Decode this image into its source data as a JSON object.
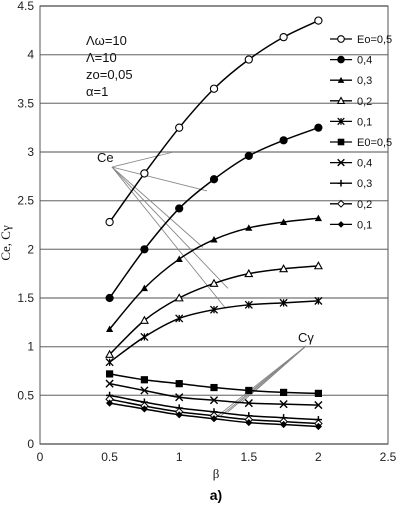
{
  "chart_data": {
    "type": "line",
    "xlabel": "β",
    "ylabel": "Ce, Cγ",
    "xlim": [
      0,
      2.5
    ],
    "ylim": [
      0,
      4.5
    ],
    "x_ticks": [
      "0",
      "0.5",
      "1",
      "1.5",
      "2",
      "2.5"
    ],
    "y_ticks": [
      "0",
      "0.5",
      "1",
      "1.5",
      "2",
      "2.5",
      "3",
      "3.5",
      "4",
      "4.5"
    ],
    "grid": "horizontal",
    "legend_position": "right",
    "caption": "a)",
    "params": [
      "Λω=10",
      "Λ=10",
      "zo=0,05",
      "α=1"
    ],
    "group_labels": {
      "ce": "Ce",
      "cg": "Cγ"
    },
    "x": [
      0.5,
      0.75,
      1.0,
      1.25,
      1.5,
      1.75,
      2.0
    ],
    "series": [
      {
        "name": "Eo=0,5",
        "group": "ce",
        "marker": "circle-open",
        "values": [
          2.28,
          2.78,
          3.25,
          3.65,
          3.95,
          4.18,
          4.35
        ]
      },
      {
        "name": "0,4",
        "group": "ce",
        "marker": "circle-filled",
        "values": [
          1.5,
          2.0,
          2.42,
          2.72,
          2.96,
          3.12,
          3.25
        ]
      },
      {
        "name": "0,3",
        "group": "ce",
        "marker": "triangle-filled",
        "values": [
          1.18,
          1.6,
          1.9,
          2.1,
          2.22,
          2.28,
          2.32
        ]
      },
      {
        "name": "0,2",
        "group": "ce",
        "marker": "triangle-open",
        "values": [
          0.92,
          1.27,
          1.5,
          1.65,
          1.75,
          1.8,
          1.83
        ]
      },
      {
        "name": "0,1",
        "group": "ce",
        "marker": "asterisk",
        "values": [
          0.84,
          1.1,
          1.29,
          1.38,
          1.43,
          1.45,
          1.47
        ]
      },
      {
        "name": "E0=0,5",
        "group": "cg",
        "marker": "square-filled",
        "values": [
          0.72,
          0.66,
          0.62,
          0.58,
          0.55,
          0.53,
          0.52
        ]
      },
      {
        "name": "0,4",
        "group": "cg",
        "marker": "x",
        "values": [
          0.62,
          0.55,
          0.48,
          0.45,
          0.42,
          0.41,
          0.4
        ]
      },
      {
        "name": "0,3",
        "group": "cg",
        "marker": "plus",
        "values": [
          0.5,
          0.43,
          0.37,
          0.33,
          0.29,
          0.27,
          0.25
        ]
      },
      {
        "name": "0,2",
        "group": "cg",
        "marker": "diamond-open",
        "values": [
          0.46,
          0.39,
          0.33,
          0.29,
          0.25,
          0.23,
          0.21
        ]
      },
      {
        "name": "0,1",
        "group": "cg",
        "marker": "diamond-filled",
        "values": [
          0.42,
          0.36,
          0.3,
          0.26,
          0.22,
          0.2,
          0.18
        ]
      }
    ]
  }
}
